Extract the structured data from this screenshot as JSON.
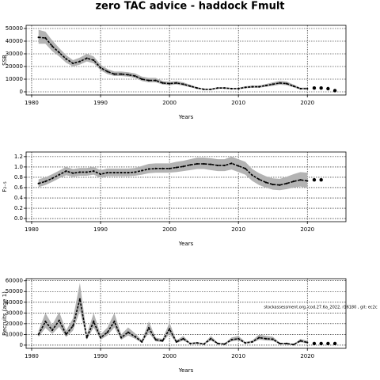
{
  "title": "zero TAC advice - haddock Fmult",
  "chart_data": [
    {
      "type": "line",
      "ylabel": "SSB",
      "xlabel": "Years",
      "x": [
        1981,
        1982,
        1983,
        1984,
        1985,
        1986,
        1987,
        1988,
        1989,
        1990,
        1991,
        1992,
        1993,
        1994,
        1995,
        1996,
        1997,
        1998,
        1999,
        2000,
        2001,
        2002,
        2003,
        2004,
        2005,
        2006,
        2007,
        2008,
        2009,
        2010,
        2011,
        2012,
        2013,
        2014,
        2015,
        2016,
        2017,
        2018,
        2019,
        2020
      ],
      "values": [
        43000,
        42500,
        36000,
        31000,
        26000,
        22500,
        24000,
        26500,
        25000,
        19000,
        16000,
        14000,
        14000,
        13500,
        12500,
        10000,
        9000,
        9000,
        7000,
        6500,
        7000,
        6000,
        4500,
        3000,
        2000,
        2000,
        3000,
        3000,
        2500,
        2500,
        3500,
        4000,
        4000,
        5000,
        6000,
        7000,
        6500,
        4500,
        2500,
        2500
      ],
      "lower": [
        38000,
        38000,
        32000,
        28000,
        23000,
        20000,
        21500,
        24000,
        22500,
        17000,
        14000,
        12500,
        12500,
        12000,
        11000,
        8500,
        7500,
        7500,
        5800,
        5300,
        5800,
        4900,
        3600,
        2400,
        1600,
        1600,
        2400,
        2400,
        2000,
        2000,
        2800,
        3200,
        3200,
        4000,
        4800,
        5600,
        5200,
        3500,
        1900,
        1800
      ],
      "upper": [
        49000,
        47500,
        40500,
        34500,
        29000,
        25000,
        27000,
        30000,
        28000,
        21500,
        18000,
        16000,
        16000,
        15500,
        14500,
        12000,
        11000,
        11000,
        8500,
        8000,
        8500,
        7500,
        5600,
        3800,
        2500,
        2500,
        3700,
        3700,
        3100,
        3200,
        4400,
        5000,
        5000,
        6200,
        7500,
        8700,
        8100,
        5700,
        3300,
        3400
      ],
      "forecast_x": [
        2021,
        2022,
        2023,
        2024
      ],
      "forecast_values": [
        3000,
        3000,
        2500,
        1000
      ],
      "xlim": [
        1979.2,
        2025.6
      ],
      "xticks": [
        1980,
        1990,
        2000,
        2010,
        2020
      ],
      "ylim": [
        -2500,
        52500
      ],
      "yticks": [
        0,
        10000,
        20000,
        30000,
        40000,
        50000
      ],
      "grid": true,
      "color": "#000000",
      "band_color": "#b3b3b3"
    },
    {
      "type": "line",
      "ylabel": "F₂₋₅",
      "xlabel": "Years",
      "x": [
        1981,
        1982,
        1983,
        1984,
        1985,
        1986,
        1987,
        1988,
        1989,
        1990,
        1991,
        1992,
        1993,
        1994,
        1995,
        1996,
        1997,
        1998,
        1999,
        2000,
        2001,
        2002,
        2003,
        2004,
        2005,
        2006,
        2007,
        2008,
        2009,
        2010,
        2011,
        2012,
        2013,
        2014,
        2015,
        2016,
        2017,
        2018,
        2019,
        2020
      ],
      "values": [
        0.68,
        0.72,
        0.78,
        0.85,
        0.92,
        0.88,
        0.9,
        0.9,
        0.92,
        0.86,
        0.89,
        0.89,
        0.89,
        0.89,
        0.9,
        0.93,
        0.96,
        0.97,
        0.97,
        0.97,
        0.99,
        1.01,
        1.04,
        1.06,
        1.06,
        1.05,
        1.03,
        1.03,
        1.07,
        1.02,
        0.97,
        0.84,
        0.76,
        0.7,
        0.66,
        0.65,
        0.68,
        0.72,
        0.75,
        0.73
      ],
      "lower": [
        0.61,
        0.65,
        0.71,
        0.78,
        0.84,
        0.81,
        0.83,
        0.83,
        0.85,
        0.79,
        0.82,
        0.82,
        0.82,
        0.82,
        0.83,
        0.85,
        0.88,
        0.89,
        0.89,
        0.89,
        0.9,
        0.92,
        0.94,
        0.96,
        0.96,
        0.94,
        0.92,
        0.92,
        0.95,
        0.9,
        0.85,
        0.73,
        0.65,
        0.6,
        0.56,
        0.55,
        0.57,
        0.6,
        0.62,
        0.59
      ],
      "upper": [
        0.76,
        0.8,
        0.86,
        0.93,
        1.0,
        0.96,
        0.98,
        0.98,
        1.0,
        0.94,
        0.97,
        0.97,
        0.97,
        0.97,
        0.98,
        1.02,
        1.06,
        1.07,
        1.07,
        1.07,
        1.1,
        1.12,
        1.15,
        1.18,
        1.18,
        1.17,
        1.15,
        1.15,
        1.2,
        1.15,
        1.1,
        0.96,
        0.88,
        0.82,
        0.78,
        0.77,
        0.81,
        0.86,
        0.9,
        0.89
      ],
      "forecast_x": [
        2021,
        2022
      ],
      "forecast_values": [
        0.75,
        0.75
      ],
      "xlim": [
        1979.2,
        2025.6
      ],
      "xticks": [
        1980,
        1990,
        2000,
        2010,
        2020
      ],
      "ylim": [
        -0.06,
        1.29
      ],
      "yticks": [
        {
          "value": 0,
          "label": "0.0"
        },
        0.2,
        0.4,
        0.6,
        0.8,
        {
          "value": 1,
          "label": "1.0"
        },
        1.2
      ],
      "grid": true,
      "color": "#000000",
      "band_color": "#b3b3b3"
    },
    {
      "type": "line",
      "ylabel": "Recruits (age 1)",
      "xlabel": "Years",
      "annotation": "stockassessment.org, cod.27.6a_2022, r16180 , git: ec2c",
      "x": [
        1981,
        1982,
        1983,
        1984,
        1985,
        1986,
        1987,
        1988,
        1989,
        1990,
        1991,
        1992,
        1993,
        1994,
        1995,
        1996,
        1997,
        1998,
        1999,
        2000,
        2001,
        2002,
        2003,
        2004,
        2005,
        2006,
        2007,
        2008,
        2009,
        2010,
        2011,
        2012,
        2013,
        2014,
        2015,
        2016,
        2017,
        2018,
        2019,
        2020
      ],
      "values": [
        10000,
        22000,
        14000,
        23000,
        10000,
        18000,
        43000,
        7000,
        22000,
        7000,
        12000,
        22000,
        7000,
        12000,
        8000,
        3000,
        16000,
        5000,
        4000,
        15000,
        3000,
        6000,
        1500,
        2000,
        1000,
        6000,
        1500,
        1000,
        5000,
        6000,
        2000,
        3000,
        7000,
        6000,
        5500,
        1500,
        1500,
        500,
        4000,
        2500
      ],
      "lower": [
        7500,
        16000,
        10500,
        17000,
        7500,
        13500,
        32000,
        5000,
        16500,
        5000,
        9000,
        16500,
        5000,
        9000,
        6000,
        2000,
        11500,
        3500,
        2800,
        10500,
        2000,
        4200,
        1000,
        1300,
        600,
        4200,
        1000,
        600,
        3500,
        4300,
        1400,
        2100,
        5000,
        4300,
        3900,
        1000,
        1000,
        300,
        2700,
        1500
      ],
      "upper": [
        13500,
        30000,
        19000,
        31000,
        13500,
        25000,
        58000,
        10000,
        30000,
        10000,
        16500,
        30000,
        10000,
        16500,
        11000,
        4500,
        22000,
        7000,
        5800,
        21000,
        4500,
        8500,
        2200,
        3000,
        1600,
        8500,
        2200,
        1600,
        7200,
        8500,
        3000,
        4300,
        9900,
        8500,
        7800,
        2200,
        2200,
        800,
        5800,
        4000
      ],
      "forecast_x": [
        2021,
        2022,
        2023,
        2024
      ],
      "forecast_values": [
        1500,
        1500,
        1500,
        1500
      ],
      "xlim": [
        1979.2,
        2025.6
      ],
      "xticks": [
        1980,
        1990,
        2000,
        2010,
        2020
      ],
      "ylim": [
        -3000,
        62000
      ],
      "yticks": [
        0,
        10000,
        20000,
        30000,
        40000,
        50000,
        60000
      ],
      "grid": true,
      "color": "#000000",
      "band_color": "#b3b3b3"
    }
  ]
}
